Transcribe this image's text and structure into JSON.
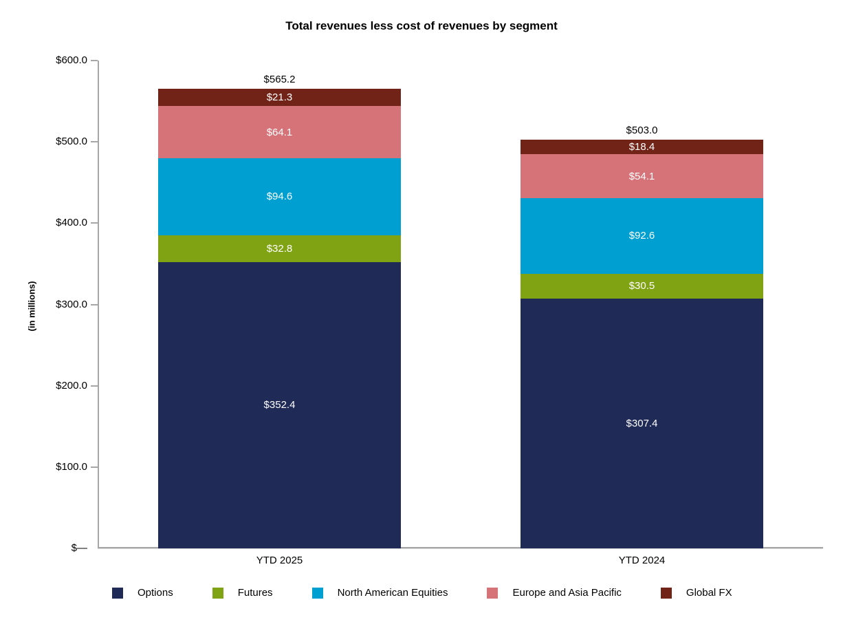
{
  "chart_data": {
    "type": "bar",
    "stacked": true,
    "title": "Total revenues less cost of revenues by segment",
    "ylabel": "(in millions)",
    "categories": [
      "YTD 2025",
      "YTD 2024"
    ],
    "series": [
      {
        "name": "Options",
        "color": "#1f2a56",
        "values": [
          352.4,
          307.4
        ],
        "value_labels": [
          "$352.4",
          "$307.4"
        ]
      },
      {
        "name": "Futures",
        "color": "#80a314",
        "values": [
          32.8,
          30.5
        ],
        "value_labels": [
          "$32.8",
          "$30.5"
        ]
      },
      {
        "name": "North American Equities",
        "color": "#009fd2",
        "values": [
          94.6,
          92.6
        ],
        "value_labels": [
          "$94.6",
          "$92.6"
        ]
      },
      {
        "name": "Europe and Asia Pacific",
        "color": "#d57378",
        "values": [
          64.1,
          54.1
        ],
        "value_labels": [
          "$64.1",
          "$54.1"
        ]
      },
      {
        "name": "Global FX",
        "color": "#722318",
        "values": [
          21.3,
          18.4
        ],
        "value_labels": [
          "$21.3",
          "$18.4"
        ]
      }
    ],
    "totals": {
      "values": [
        565.2,
        503.0
      ],
      "labels": [
        "$565.2",
        "$503.0"
      ]
    },
    "y_axis": {
      "range": [
        0,
        600
      ],
      "tick_values": [
        0,
        100,
        200,
        300,
        400,
        500,
        600
      ],
      "tick_labels": [
        "$—",
        "$100.0",
        "$200.0",
        "$300.0",
        "$400.0",
        "$500.0",
        "$600.0"
      ],
      "grid": false
    },
    "legend": {
      "position": "bottom",
      "entries": [
        "Options",
        "Futures",
        "North American Equities",
        "Europe and Asia Pacific",
        "Global FX"
      ]
    },
    "colors": {
      "axis": "#a6a6a6",
      "segment_label_text": "#ffffff",
      "text": "#000000"
    }
  }
}
